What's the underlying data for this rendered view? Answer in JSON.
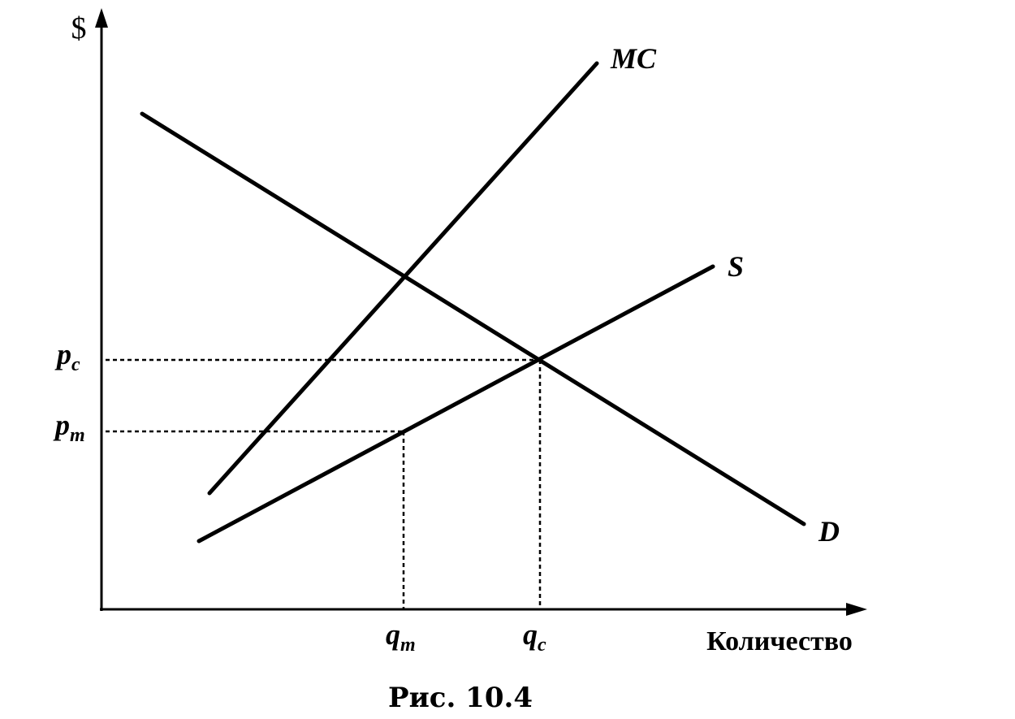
{
  "y_axis": {
    "label": "$"
  },
  "x_axis": {
    "label": "Количество"
  },
  "curves": {
    "mc": "MC",
    "s": "S",
    "d": "D"
  },
  "price_labels": [
    {
      "main": "p",
      "sub": "c"
    },
    {
      "main": "p",
      "sub": "m"
    }
  ],
  "quantity_labels": [
    {
      "main": "q",
      "sub": "m"
    },
    {
      "main": "q",
      "sub": "c"
    }
  ],
  "caption": "Рис. 10.4"
}
